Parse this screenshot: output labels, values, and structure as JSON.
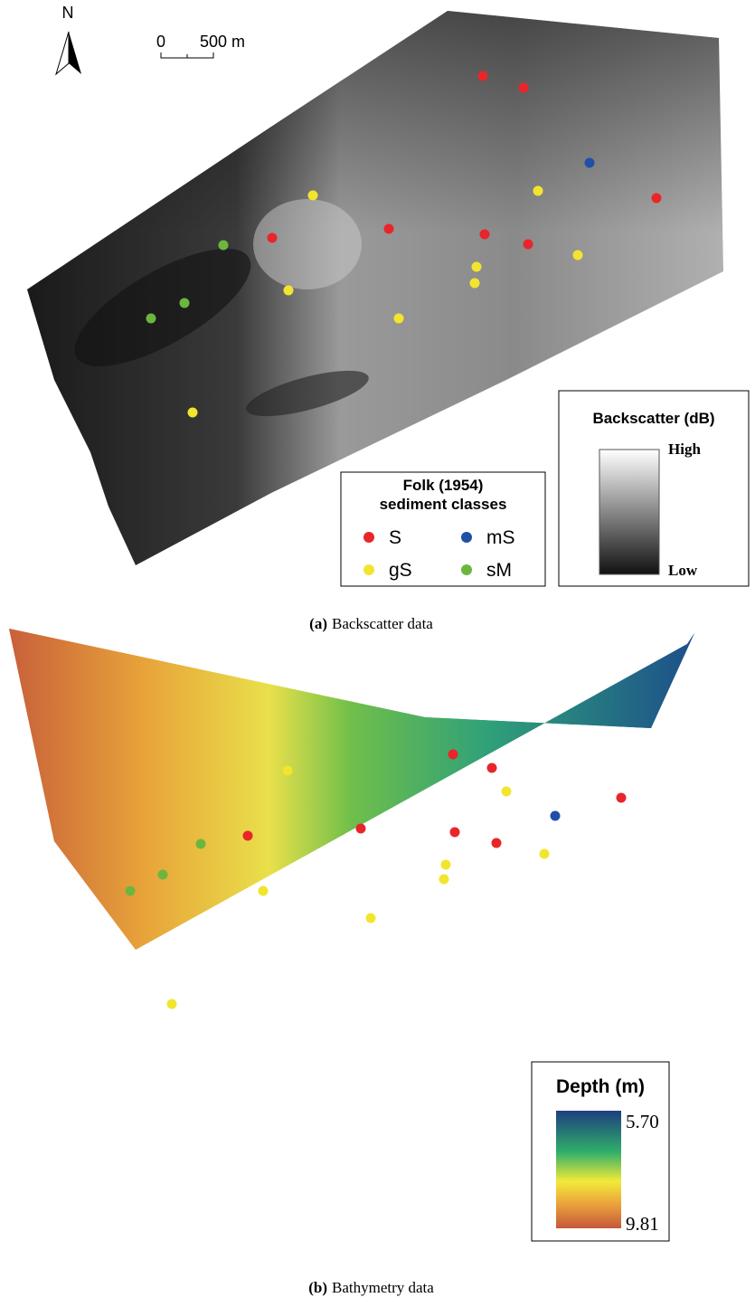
{
  "north": "N",
  "scale_bar": {
    "start": "0",
    "end": "500 m"
  },
  "sediment_legend": {
    "title_line1": "Folk (1954)",
    "title_line2": "sediment classes",
    "classes": [
      {
        "label": "S",
        "color": "#e8262a"
      },
      {
        "label": "mS",
        "color": "#1f4fa8"
      },
      {
        "label": "gS",
        "color": "#f2e52e"
      },
      {
        "label": "sM",
        "color": "#6cb63f"
      }
    ]
  },
  "backscatter_legend": {
    "title": "Backscatter (dB)",
    "high": "High",
    "low": "Low"
  },
  "depth_legend": {
    "title": "Depth (m)",
    "top": "5.70",
    "bottom": "9.81"
  },
  "caption_a": {
    "label": "(a)",
    "text": "Backscatter data"
  },
  "caption_b": {
    "label": "(b)",
    "text": "Bathymetry data"
  }
}
